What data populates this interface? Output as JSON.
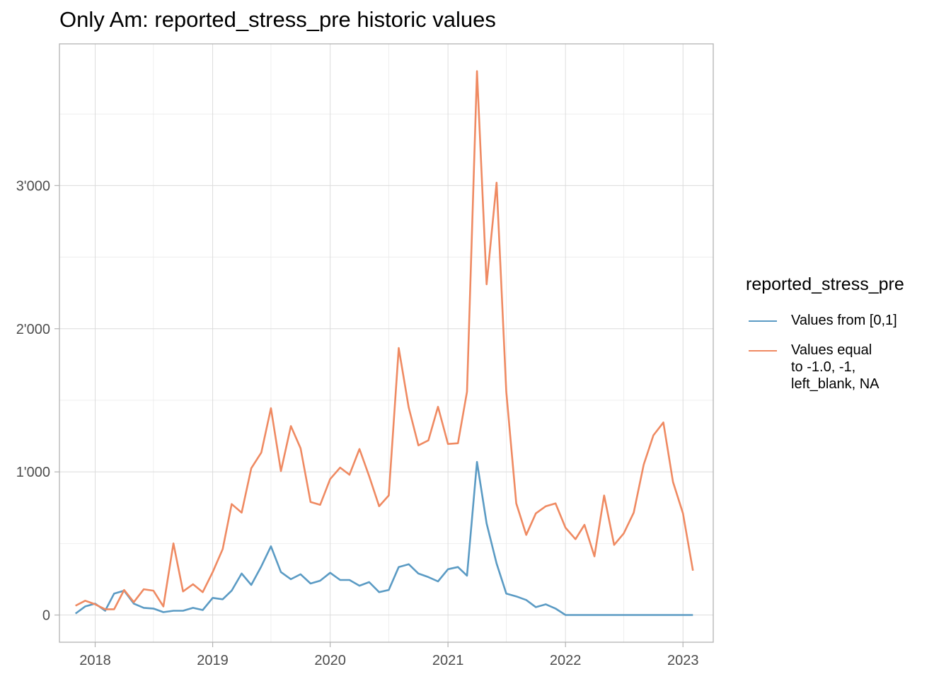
{
  "chart_data": {
    "type": "line",
    "title": "Only Am: reported_stress_pre historic values",
    "xlabel": "",
    "ylabel": "",
    "x_ticks": [
      "2018",
      "2019",
      "2020",
      "2021",
      "2022",
      "2023"
    ],
    "y_ticks": [
      "0",
      "1'000",
      "2'000",
      "3'000"
    ],
    "y_tick_values": [
      0,
      1000,
      2000,
      3000
    ],
    "xlim": [
      "2017-09-12",
      "2023-04-05"
    ],
    "ylim": [
      -190,
      3990
    ],
    "grid": true,
    "legend_title": "reported_stress_pre",
    "legend_position": "right",
    "x": [
      "2017-11-01",
      "2017-12-01",
      "2018-01-01",
      "2018-02-01",
      "2018-03-01",
      "2018-04-01",
      "2018-05-01",
      "2018-06-01",
      "2018-07-01",
      "2018-08-01",
      "2018-09-01",
      "2018-10-01",
      "2018-11-01",
      "2018-12-01",
      "2019-01-01",
      "2019-02-01",
      "2019-03-01",
      "2019-04-01",
      "2019-05-01",
      "2019-06-01",
      "2019-07-01",
      "2019-08-01",
      "2019-09-01",
      "2019-10-01",
      "2019-11-01",
      "2019-12-01",
      "2020-01-01",
      "2020-02-01",
      "2020-03-01",
      "2020-04-01",
      "2020-05-01",
      "2020-06-01",
      "2020-07-01",
      "2020-08-01",
      "2020-09-01",
      "2020-10-01",
      "2020-11-01",
      "2020-12-01",
      "2021-01-01",
      "2021-02-01",
      "2021-03-01",
      "2021-04-01",
      "2021-05-01",
      "2021-06-01",
      "2021-07-01",
      "2021-08-01",
      "2021-09-01",
      "2021-10-01",
      "2021-11-01",
      "2021-12-01",
      "2022-01-01",
      "2022-02-01",
      "2022-03-01",
      "2022-04-01",
      "2022-05-01",
      "2022-06-01",
      "2022-07-01",
      "2022-08-01",
      "2022-09-01",
      "2022-10-01",
      "2022-11-01",
      "2022-12-01",
      "2023-01-01",
      "2023-02-01"
    ],
    "series": [
      {
        "name": "Values from [0,1]",
        "color": "#5b9bc4",
        "values": [
          10,
          60,
          80,
          30,
          150,
          170,
          80,
          50,
          45,
          20,
          30,
          30,
          50,
          35,
          120,
          110,
          170,
          290,
          210,
          340,
          480,
          300,
          250,
          285,
          220,
          240,
          295,
          245,
          245,
          205,
          230,
          160,
          175,
          335,
          355,
          290,
          265,
          235,
          320,
          335,
          275,
          1070,
          640,
          360,
          150,
          130,
          105,
          55,
          75,
          45,
          0,
          0,
          0,
          0,
          0,
          0,
          0,
          0,
          0,
          0,
          0,
          0,
          0,
          0
        ]
      },
      {
        "name": "Values equal\nto -1.0, -1,\nleft_blank, NA",
        "color": "#ef8a62",
        "values": [
          65,
          100,
          75,
          40,
          40,
          175,
          90,
          180,
          170,
          60,
          500,
          165,
          215,
          160,
          300,
          460,
          775,
          715,
          1025,
          1135,
          1445,
          1005,
          1320,
          1165,
          790,
          770,
          950,
          1030,
          980,
          1160,
          970,
          760,
          835,
          1865,
          1450,
          1185,
          1220,
          1455,
          1195,
          1200,
          1560,
          3800,
          2310,
          3020,
          1560,
          780,
          560,
          710,
          760,
          780,
          610,
          530,
          630,
          410,
          835,
          490,
          570,
          715,
          1050,
          1255,
          1345,
          930,
          710,
          310
        ]
      }
    ]
  }
}
